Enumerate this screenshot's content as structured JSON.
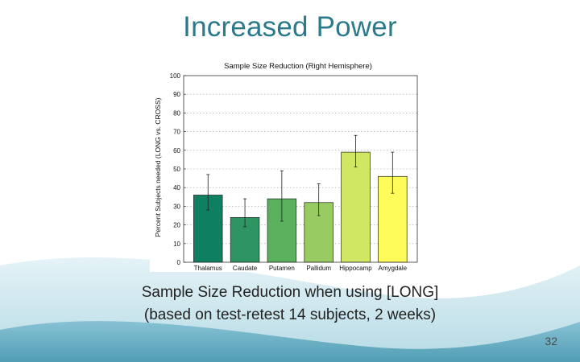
{
  "slide": {
    "title": "Increased Power",
    "caption_line1": "Sample Size Reduction when using [LONG]",
    "caption_line2": "(based on test-retest 14 subjects, 2 weeks)",
    "page_number": "32"
  },
  "chart_data": {
    "type": "bar",
    "title": "Sample Size Reduction (Right Hemisphere)",
    "xlabel": "",
    "ylabel": "Percent Subjects needed (LONG vs. CROSS)",
    "ylim": [
      0,
      100
    ],
    "yticks": [
      0,
      10,
      20,
      30,
      40,
      50,
      60,
      70,
      80,
      90,
      100
    ],
    "grid": true,
    "categories": [
      "Thalamus",
      "Caudate",
      "Putamen",
      "Pallidum",
      "Hippocamp",
      "Amygdale"
    ],
    "values": [
      36,
      24,
      34,
      32,
      59,
      46
    ],
    "error_low": [
      28,
      19,
      22,
      25,
      51,
      37
    ],
    "error_high": [
      47,
      34,
      49,
      42,
      68,
      59
    ],
    "colors": [
      "#0f7f62",
      "#2e9462",
      "#5bb05e",
      "#98cc62",
      "#cfe763",
      "#fdfc5a"
    ]
  }
}
